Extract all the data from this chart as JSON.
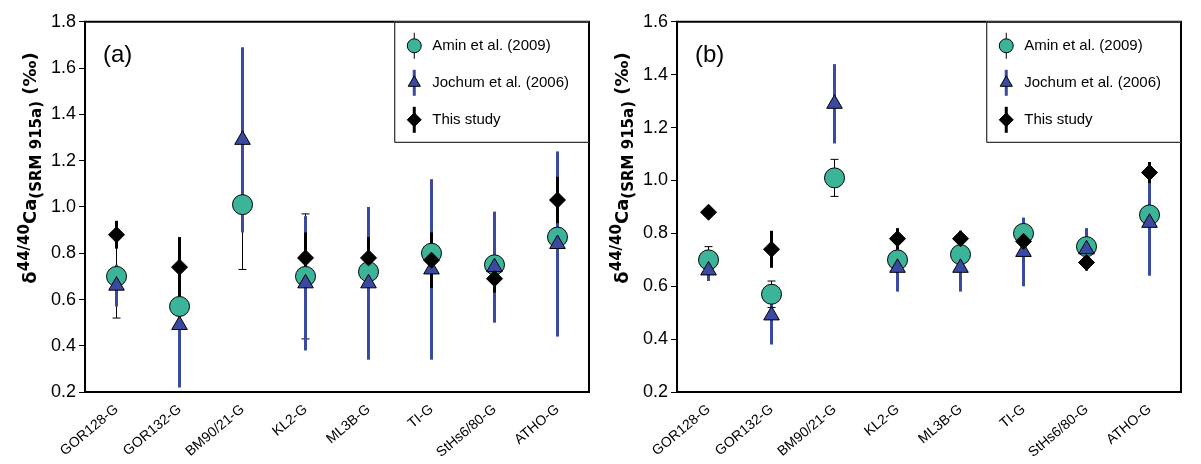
{
  "chart_data": [
    {
      "type": "scatter",
      "title": "(a)",
      "ylabel": "δ$^{44/40}$Ca$_{(SRM 915a)}$ (‰)",
      "categories": [
        "GOR128-G",
        "GOR132-G",
        "BM90/21-G",
        "KL2-G",
        "ML3B-G",
        "TI-G",
        "StHs6/80-G",
        "ATHO-G"
      ],
      "ylim": [
        0.2,
        1.8
      ],
      "yticks": [
        0.2,
        0.4,
        0.6,
        0.8,
        {
          "value": 1,
          "label": "1.0"
        },
        1.2,
        1.4,
        1.6,
        1.8
      ],
      "grid": false,
      "legend": "top right",
      "series": [
        {
          "name": "Amin et al. (2009)",
          "color": "#3cb49a",
          "marker": "circle",
          "values": [
            0.7,
            0.57,
            1.01,
            0.7,
            0.72,
            0.8,
            0.75,
            0.87
          ],
          "errors": [
            0.18,
            null,
            0.28,
            0.27,
            null,
            null,
            null,
            null
          ]
        },
        {
          "name": "Jochum et al. (2006)",
          "color": "#3a4aa3",
          "marker": "triangle",
          "values": [
            0.66,
            0.49,
            1.29,
            0.67,
            0.67,
            0.73,
            0.74,
            0.84
          ],
          "errors": [
            0.09,
            0.27,
            0.4,
            0.29,
            0.33,
            0.39,
            0.24,
            0.4
          ]
        },
        {
          "name": "This study",
          "color": "#000000",
          "marker": "diamond",
          "values": [
            0.88,
            0.74,
            null,
            0.78,
            0.78,
            0.77,
            0.69,
            1.03
          ],
          "errors": [
            0.06,
            0.13,
            null,
            0.11,
            0.09,
            0.12,
            0.06,
            0.1
          ]
        }
      ]
    },
    {
      "type": "scatter",
      "title": "(b)",
      "ylabel": "δ$^{44/40}$Ca$_{(SRM 915a)}$ (‰)",
      "categories": [
        "GOR128-G",
        "GOR132-G",
        "BM90/21-G",
        "KL2-G",
        "ML3B-G",
        "TI-G",
        "StHs6/80-G",
        "ATHO-G"
      ],
      "ylim": [
        0.2,
        1.6
      ],
      "yticks": [
        0.2,
        0.4,
        0.6,
        0.8,
        {
          "value": 1,
          "label": "1.0"
        },
        1.2,
        1.4,
        1.6
      ],
      "grid": false,
      "legend": "top right",
      "series": [
        {
          "name": "Amin et al. (2009)",
          "color": "#3cb49a",
          "marker": "circle",
          "values": [
            0.7,
            0.57,
            1.01,
            0.7,
            0.72,
            0.8,
            0.75,
            0.87
          ],
          "errors": [
            0.05,
            0.05,
            0.07,
            null,
            null,
            null,
            null,
            null
          ]
        },
        {
          "name": "Jochum et al. (2006)",
          "color": "#3a4aa3",
          "marker": "triangle",
          "values": [
            0.66,
            0.49,
            1.29,
            0.67,
            0.67,
            0.73,
            0.74,
            0.84
          ],
          "errors": [
            0.04,
            0.11,
            0.15,
            0.09,
            0.09,
            0.13,
            0.08,
            0.2
          ]
        },
        {
          "name": "This study",
          "color": "#000000",
          "marker": "diamond",
          "values": [
            0.88,
            0.74,
            null,
            0.78,
            0.78,
            0.77,
            0.69,
            1.03
          ],
          "errors": [
            0.02,
            0.07,
            null,
            0.04,
            0.03,
            0.03,
            0.03,
            0.04
          ]
        }
      ]
    }
  ]
}
